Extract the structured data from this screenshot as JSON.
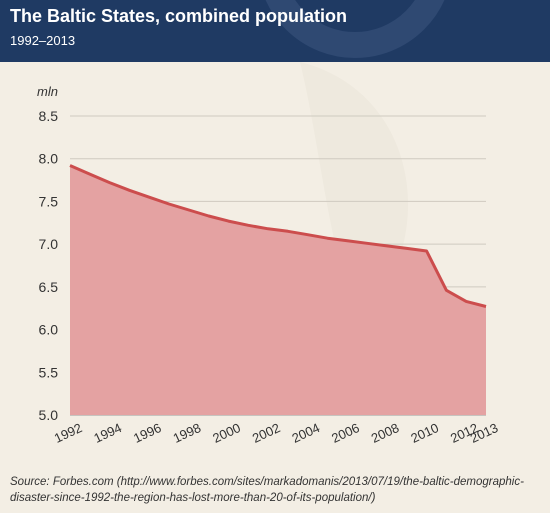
{
  "header": {
    "title": "The Baltic States, combined population",
    "subtitle": "1992–2013"
  },
  "source": {
    "label": "Source:",
    "text": "Forbes.com (http://www.forbes.com/sites/markadomanis/2013/07/19/the-baltic-demographic-disaster-since-1992-the-region-has-lost-more-than-20-of-its-population/)"
  },
  "colors": {
    "header_bg": "#1f3a63",
    "line": "#cc4d4d",
    "fill": "#e4a2a2",
    "background": "#f3eee4"
  },
  "chart_data": {
    "type": "area",
    "title": "The Baltic States, combined population",
    "subtitle": "1992–2013",
    "ylabel": "mln",
    "xlabel": "",
    "ylim": [
      5.0,
      8.5
    ],
    "yticks": [
      "5.0",
      "5.5",
      "6.0",
      "6.5",
      "7.0",
      "7.5",
      "8.0",
      "8.5"
    ],
    "xticks": [
      "1992",
      "1994",
      "1996",
      "1998",
      "2000",
      "2002",
      "2004",
      "2006",
      "2008",
      "2010",
      "2012",
      "2013"
    ],
    "grid": true,
    "series": [
      {
        "x": [
          1992,
          1993,
          1994,
          1995,
          1996,
          1997,
          1998,
          1999,
          2000,
          2001,
          2002,
          2003,
          2004,
          2005,
          2006,
          2007,
          2008,
          2009,
          2010,
          2011,
          2012,
          2013
        ],
        "values": [
          7.92,
          7.82,
          7.72,
          7.63,
          7.55,
          7.47,
          7.4,
          7.33,
          7.27,
          7.22,
          7.18,
          7.15,
          7.11,
          7.07,
          7.04,
          7.01,
          6.98,
          6.95,
          6.92,
          6.46,
          6.33,
          6.27
        ]
      }
    ]
  }
}
